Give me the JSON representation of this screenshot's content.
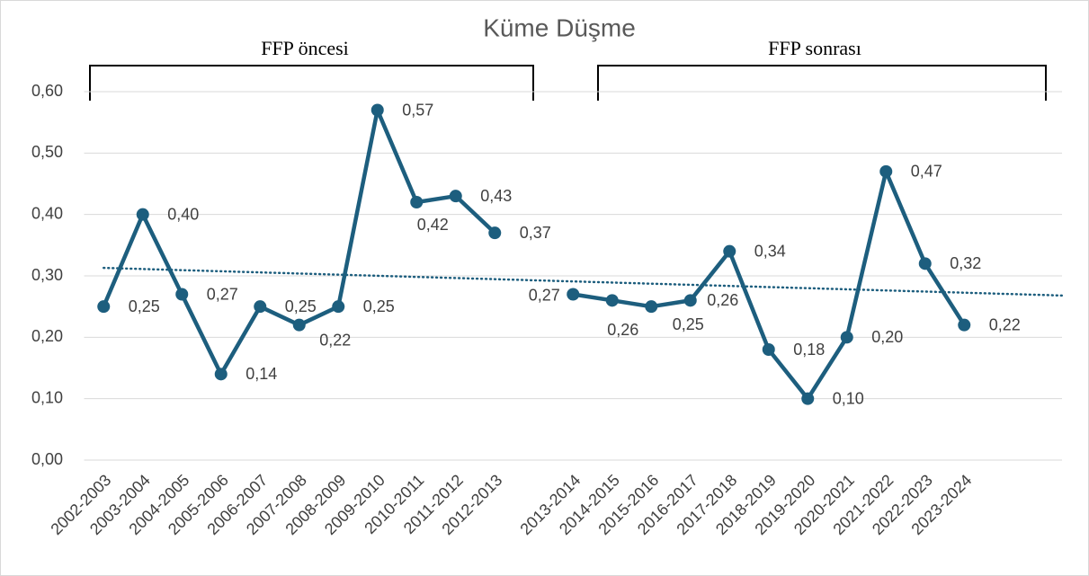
{
  "chart_data": {
    "type": "line",
    "title": "Küme Düşme",
    "categories": [
      "2002-2003",
      "2003-2004",
      "2004-2005",
      "2005-2006",
      "2006-2007",
      "2007-2008",
      "2008-2009",
      "2009-2010",
      "2010-2011",
      "2011-2012",
      "2012-2013",
      null,
      "2013-2014",
      "2014-2015",
      "2015-2016",
      "2016-2017",
      "2017-2018",
      "2018-2019",
      "2019-2020",
      "2020-2021",
      "2021-2022",
      "2022-2023",
      "2023-2024",
      null,
      null
    ],
    "values": [
      0.25,
      0.4,
      0.27,
      0.14,
      0.25,
      0.22,
      0.25,
      0.57,
      0.42,
      0.43,
      0.37,
      null,
      0.27,
      0.26,
      0.25,
      0.26,
      0.34,
      0.18,
      0.1,
      0.2,
      0.47,
      0.32,
      0.22,
      null,
      null
    ],
    "value_labels": [
      "0,25",
      "0,40",
      "0,27",
      "0,14",
      "0,25",
      "0,22",
      "0,25",
      "0,57",
      "0,42",
      "0,43",
      "0,37",
      null,
      "0,27",
      "0,26",
      "0,25",
      "0,26",
      "0,34",
      "0,18",
      "0,10",
      "0,20",
      "0,47",
      "0,32",
      "0,22",
      null,
      null
    ],
    "color": "#1d5e7e",
    "ylim": [
      0,
      0.6
    ],
    "yticks": [
      {
        "value": 0,
        "label": "0,00"
      },
      {
        "value": 0.1,
        "label": "0,10"
      },
      {
        "value": 0.2,
        "label": "0,20"
      },
      {
        "value": 0.3,
        "label": "0,30"
      },
      {
        "value": 0.4,
        "label": "0,40"
      },
      {
        "value": 0.5,
        "label": "0,50"
      },
      {
        "value": 0.6,
        "label": "0,60"
      }
    ],
    "grid": true,
    "trendline": {
      "values": [
        0.313,
        0.268
      ],
      "style": "dotted"
    },
    "annotations": [
      "FFP öncesi",
      "FFP sonrası"
    ]
  }
}
